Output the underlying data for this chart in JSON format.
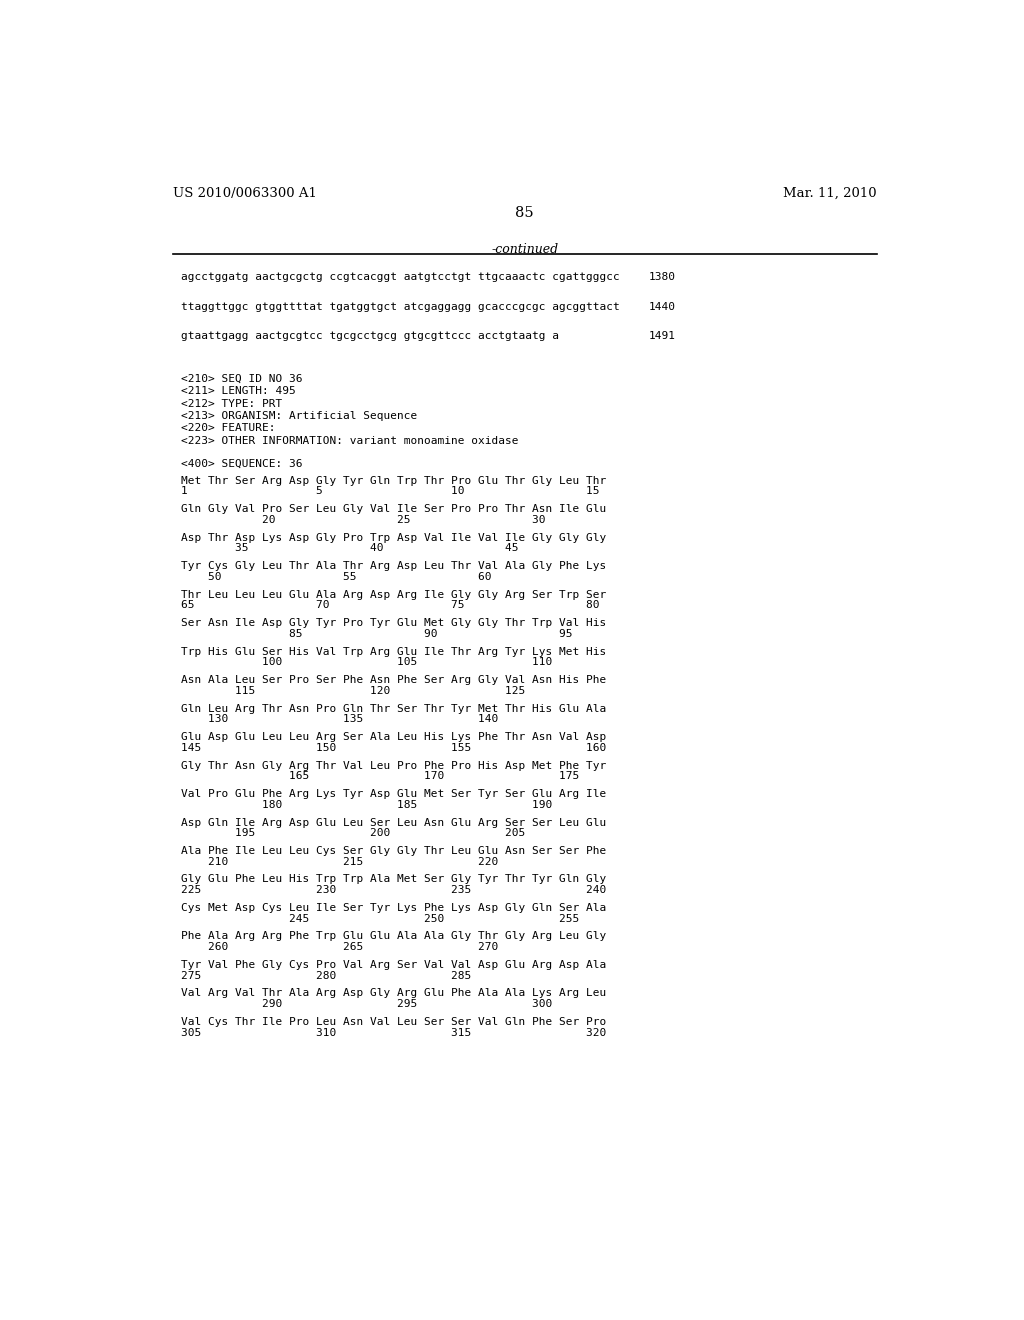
{
  "header_left": "US 2010/0063300 A1",
  "header_right": "Mar. 11, 2010",
  "page_number": "85",
  "continued_label": "-continued",
  "background_color": "#ffffff",
  "text_color": "#000000",
  "mono_lines": [
    {
      "text": "agcctggatg aactgcgctg ccgtcacggt aatgtcctgt ttgcaaactc cgattgggcc",
      "num": "1380"
    },
    {
      "text": "ttaggttggc gtggttttat tgatggtgct atcgaggagg gcacccgcgc agcggttact",
      "num": "1440"
    },
    {
      "text": "gtaattgagg aactgcgtcc tgcgcctgcg gtgcgttccc acctgtaatg a",
      "num": "1491"
    }
  ],
  "meta_lines": [
    "<210> SEQ ID NO 36",
    "<211> LENGTH: 495",
    "<212> TYPE: PRT",
    "<213> ORGANISM: Artificial Sequence",
    "<220> FEATURE:",
    "<223> OTHER INFORMATION: variant monoamine oxidase"
  ],
  "seq_label": "<400> SEQUENCE: 36",
  "sequence_blocks": [
    {
      "aa_line": "Met Thr Ser Arg Asp Gly Tyr Gln Trp Thr Pro Glu Thr Gly Leu Thr",
      "num_line": "1                   5                   10                  15"
    },
    {
      "aa_line": "Gln Gly Val Pro Ser Leu Gly Val Ile Ser Pro Pro Thr Asn Ile Glu",
      "num_line": "            20                  25                  30"
    },
    {
      "aa_line": "Asp Thr Asp Lys Asp Gly Pro Trp Asp Val Ile Val Ile Gly Gly Gly",
      "num_line": "        35                  40                  45"
    },
    {
      "aa_line": "Tyr Cys Gly Leu Thr Ala Thr Arg Asp Leu Thr Val Ala Gly Phe Lys",
      "num_line": "    50                  55                  60"
    },
    {
      "aa_line": "Thr Leu Leu Leu Glu Ala Arg Asp Arg Ile Gly Gly Arg Ser Trp Ser",
      "num_line": "65                  70                  75                  80"
    },
    {
      "aa_line": "Ser Asn Ile Asp Gly Tyr Pro Tyr Glu Met Gly Gly Thr Trp Val His",
      "num_line": "                85                  90                  95"
    },
    {
      "aa_line": "Trp His Glu Ser His Val Trp Arg Glu Ile Thr Arg Tyr Lys Met His",
      "num_line": "            100                 105                 110"
    },
    {
      "aa_line": "Asn Ala Leu Ser Pro Ser Phe Asn Phe Ser Arg Gly Val Asn His Phe",
      "num_line": "        115                 120                 125"
    },
    {
      "aa_line": "Gln Leu Arg Thr Asn Pro Gln Thr Ser Thr Tyr Met Thr His Glu Ala",
      "num_line": "    130                 135                 140"
    },
    {
      "aa_line": "Glu Asp Glu Leu Leu Arg Ser Ala Leu His Lys Phe Thr Asn Val Asp",
      "num_line": "145                 150                 155                 160"
    },
    {
      "aa_line": "Gly Thr Asn Gly Arg Thr Val Leu Pro Phe Pro His Asp Met Phe Tyr",
      "num_line": "                165                 170                 175"
    },
    {
      "aa_line": "Val Pro Glu Phe Arg Lys Tyr Asp Glu Met Ser Tyr Ser Glu Arg Ile",
      "num_line": "            180                 185                 190"
    },
    {
      "aa_line": "Asp Gln Ile Arg Asp Glu Leu Ser Leu Asn Glu Arg Ser Ser Leu Glu",
      "num_line": "        195                 200                 205"
    },
    {
      "aa_line": "Ala Phe Ile Leu Leu Cys Ser Gly Gly Thr Leu Glu Asn Ser Ser Phe",
      "num_line": "    210                 215                 220"
    },
    {
      "aa_line": "Gly Glu Phe Leu His Trp Trp Ala Met Ser Gly Tyr Thr Tyr Gln Gly",
      "num_line": "225                 230                 235                 240"
    },
    {
      "aa_line": "Cys Met Asp Cys Leu Ile Ser Tyr Lys Phe Lys Asp Gly Gln Ser Ala",
      "num_line": "                245                 250                 255"
    },
    {
      "aa_line": "Phe Ala Arg Arg Phe Trp Glu Glu Ala Ala Gly Thr Gly Arg Leu Gly",
      "num_line": "    260                 265                 270"
    },
    {
      "aa_line": "Tyr Val Phe Gly Cys Pro Val Arg Ser Val Val Asp Glu Arg Asp Ala",
      "num_line": "275                 280                 285"
    },
    {
      "aa_line": "Val Arg Val Thr Ala Arg Asp Gly Arg Glu Phe Ala Ala Lys Arg Leu",
      "num_line": "            290                 295                 300"
    },
    {
      "aa_line": "Val Cys Thr Ile Pro Leu Asn Val Leu Ser Ser Val Gln Phe Ser Pro",
      "num_line": "305                 310                 315                 320"
    }
  ]
}
